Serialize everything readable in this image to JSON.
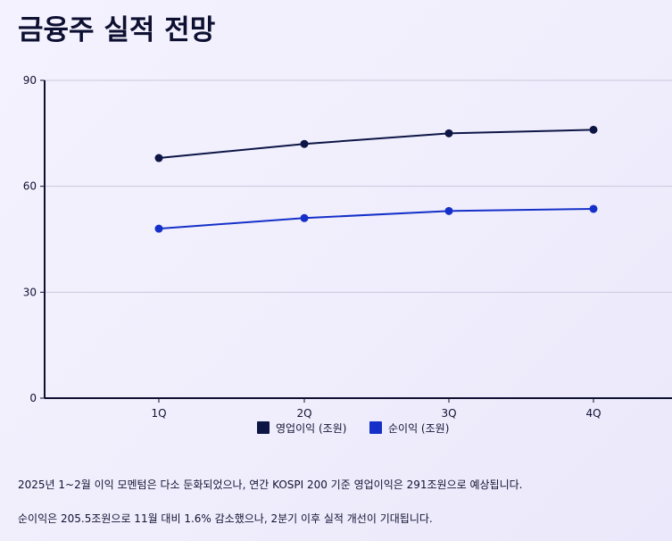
{
  "title": "금융주 실적 전망",
  "chart_data": {
    "type": "line",
    "categories": [
      "1Q",
      "2Q",
      "3Q",
      "4Q"
    ],
    "series": [
      {
        "name": "영업이익 (조원)",
        "values": [
          68,
          72,
          75,
          76
        ],
        "color": "#0d1545"
      },
      {
        "name": "순이익 (조원)",
        "values": [
          48,
          51,
          53,
          53.6
        ],
        "color": "#1530c8"
      }
    ],
    "ylim": [
      0,
      90
    ],
    "yticks": [
      0,
      30,
      60,
      90
    ],
    "grid": true,
    "legend": "bottom-center",
    "xlabel": "",
    "ylabel": ""
  },
  "notes": [
    "2025년 1~2월 이익 모멘텀은 다소 둔화되었으나, 연간 KOSPI 200 기준 영업이익은 291조원으로 예상됩니다.",
    "순이익은 205.5조원으로 11월 대비 1.6% 감소했으나, 2분기 이후 실적 개선이 기대됩니다."
  ]
}
